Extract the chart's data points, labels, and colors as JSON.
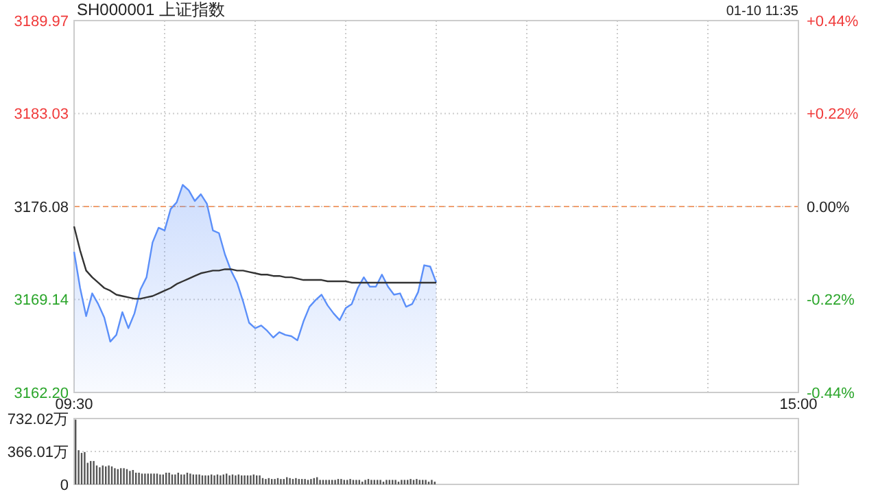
{
  "chart_data": [
    {
      "type": "line",
      "title": "SH000001 上证指数",
      "annotations": [
        "01-10 11:35"
      ],
      "categories": [
        "09:30",
        null,
        null,
        null,
        null,
        null,
        null,
        null,
        null,
        null,
        null,
        null,
        null,
        null,
        null,
        null,
        null,
        null,
        null,
        null,
        null,
        null,
        null,
        null,
        null,
        null,
        null,
        null,
        null,
        null,
        null,
        null,
        null,
        null,
        null,
        null,
        null,
        null,
        null,
        null,
        null,
        null,
        null,
        null,
        null,
        null,
        null,
        null,
        null,
        null,
        null,
        null,
        null,
        null,
        null,
        null,
        null,
        null,
        null,
        null,
        null,
        null,
        null,
        null,
        null,
        null,
        null,
        null,
        null,
        null,
        null,
        null,
        null,
        null,
        null,
        null,
        null,
        null,
        null,
        null,
        null,
        null,
        null,
        null,
        null,
        null,
        null,
        null,
        null,
        null,
        null,
        null,
        null,
        null,
        null,
        null,
        null,
        null,
        null,
        null,
        null,
        null,
        null,
        null,
        null,
        null,
        null,
        null,
        null,
        null,
        null,
        null,
        null,
        null,
        null,
        null,
        null,
        null,
        null,
        null,
        "15:00"
      ],
      "ylim": [
        3162.2,
        3189.97
      ],
      "yticks": [
        {
          "value": 3162.2,
          "label": "3162.20"
        },
        {
          "value": 3169.14,
          "label": "3169.14"
        },
        {
          "value": 3176.08,
          "label": "3176.08"
        },
        {
          "value": 3183.03,
          "label": "3183.03"
        },
        {
          "value": 3189.97,
          "label": "3189.97"
        }
      ],
      "y2lim": [
        -0.44,
        0.44
      ],
      "y2ticks": [
        {
          "value": -0.44,
          "label": "-0.44%"
        },
        {
          "value": -0.22,
          "label": "-0.22%"
        },
        {
          "value": 0,
          "label": "0.00%"
        },
        {
          "value": 0.22,
          "label": "+0.22%"
        },
        {
          "value": 0.44,
          "label": "+0.44%"
        }
      ],
      "grid": true,
      "ref_lines": [
        {
          "axis": "y",
          "value": 3176.08,
          "color": "#f0a070",
          "line_style": "dashed"
        }
      ],
      "series": [
        {
          "type": "area",
          "color": "#5b8ff9",
          "values": [
            3172.7,
            3170,
            3167.9,
            3169.6,
            3168.8,
            3167.8,
            3166,
            3166.5,
            3168.2,
            3167,
            3168.1,
            3169.9,
            3170.8,
            3173.4,
            3174.5,
            3174.3,
            3175.9,
            3176.4,
            3177.7,
            3177.3,
            3176.5,
            3177,
            3176.3,
            3174.3,
            3174.1,
            3172.5,
            3171.3,
            3170.4,
            3169,
            3167.4,
            3167,
            3167.2,
            3166.8,
            3166.3,
            3166.7,
            3166.5,
            3166.4,
            3166.1,
            3167.5,
            3168.6,
            3169.1,
            3169.5,
            3168.7,
            3168.1,
            3167.6,
            3168.5,
            3168.8,
            3170,
            3170.8,
            3170.1,
            3170.1,
            3171,
            3170.1,
            3169.5,
            3169.6,
            3168.6,
            3168.8,
            3169.7,
            3171.7,
            3171.6,
            3170.4,
            null,
            null,
            null,
            null,
            null,
            null,
            null,
            null,
            null,
            null,
            null,
            null,
            null,
            null,
            null,
            null,
            null,
            null,
            null,
            null,
            null,
            null,
            null,
            null,
            null,
            null,
            null,
            null,
            null,
            null,
            null,
            null,
            null,
            null,
            null,
            null,
            null,
            null,
            null,
            null,
            null,
            null,
            null,
            null,
            null,
            null,
            null,
            null,
            null,
            null,
            null,
            null,
            null,
            null,
            null,
            null,
            null,
            null,
            null,
            null
          ]
        },
        {
          "type": "line",
          "color": "#333333",
          "values": [
            3174.6,
            3172.8,
            3171.3,
            3170.8,
            3170.4,
            3170,
            3169.8,
            3169.5,
            3169.4,
            3169.3,
            3169.2,
            3169.2,
            3169.3,
            3169.4,
            3169.6,
            3169.8,
            3170,
            3170.3,
            3170.5,
            3170.7,
            3170.9,
            3171.1,
            3171.2,
            3171.3,
            3171.3,
            3171.4,
            3171.4,
            3171.3,
            3171.3,
            3171.2,
            3171.1,
            3171,
            3171,
            3170.9,
            3170.9,
            3170.8,
            3170.8,
            3170.7,
            3170.6,
            3170.6,
            3170.6,
            3170.6,
            3170.5,
            3170.5,
            3170.5,
            3170.5,
            3170.4,
            3170.4,
            3170.4,
            3170.4,
            3170.4,
            3170.4,
            3170.4,
            3170.4,
            3170.4,
            3170.4,
            3170.4,
            3170.4,
            3170.4,
            3170.4,
            3170.4,
            null,
            null,
            null,
            null,
            null,
            null,
            null,
            null,
            null,
            null,
            null,
            null,
            null,
            null,
            null,
            null,
            null,
            null,
            null,
            null,
            null,
            null,
            null,
            null,
            null,
            null,
            null,
            null,
            null,
            null,
            null,
            null,
            null,
            null,
            null,
            null,
            null,
            null,
            null,
            null,
            null,
            null,
            null,
            null,
            null,
            null,
            null,
            null,
            null,
            null,
            null,
            null,
            null,
            null,
            null,
            null,
            null,
            null,
            null,
            null
          ]
        }
      ],
      "marker": "none",
      "line_style": "solid"
    },
    {
      "type": "bar",
      "ylim": [
        0,
        732.02
      ],
      "yticks": [
        {
          "value": 0,
          "label": "0"
        },
        {
          "value": 366.01,
          "label": "366.01万"
        },
        {
          "value": 732.02,
          "label": "732.02万"
        }
      ],
      "grid": "y",
      "tick_labels": "y",
      "color": "#555555",
      "categories": [
        null,
        null,
        null,
        null,
        null,
        null,
        null,
        null,
        null,
        null,
        null,
        null,
        null,
        null,
        null,
        null,
        null,
        null,
        null,
        null,
        null,
        null,
        null,
        null,
        null,
        null,
        null,
        null,
        null,
        null,
        null,
        null,
        null,
        null,
        null,
        null,
        null,
        null,
        null,
        null,
        null,
        null,
        null,
        null,
        null,
        null,
        null,
        null,
        null,
        null,
        null,
        null,
        null,
        null,
        null,
        null,
        null,
        null,
        null,
        null,
        null,
        null,
        null,
        null,
        null,
        null,
        null,
        null,
        null,
        null,
        null,
        null,
        null,
        null,
        null,
        null,
        null,
        null,
        null,
        null,
        null,
        null,
        null,
        null,
        null,
        null,
        null,
        null,
        null,
        null,
        null,
        null,
        null,
        null,
        null,
        null,
        null,
        null,
        null,
        null,
        null,
        null,
        null,
        null,
        null,
        null,
        null,
        null,
        null,
        null,
        null,
        null,
        null,
        null,
        null,
        null,
        null,
        null,
        null,
        null,
        null,
        null,
        null,
        null,
        null,
        null,
        null,
        null,
        null,
        null,
        null,
        null,
        null,
        null,
        null,
        null,
        null,
        null,
        null,
        null,
        null,
        null,
        null,
        null,
        null,
        null,
        null,
        null,
        null,
        null,
        null,
        null,
        null,
        null,
        null,
        null,
        null,
        null,
        null,
        null,
        null,
        null,
        null,
        null,
        null,
        null,
        null,
        null,
        null,
        null,
        null,
        null,
        null,
        null,
        null,
        null,
        null,
        null,
        null,
        null,
        null,
        null,
        null,
        null,
        null,
        null,
        null,
        null,
        null,
        null,
        null,
        null,
        null,
        null,
        null,
        null,
        null,
        null,
        null,
        null,
        null,
        null,
        null,
        null,
        null,
        null,
        null,
        null,
        null,
        null,
        null,
        null,
        null,
        null,
        null,
        null,
        null,
        null,
        null,
        null,
        null,
        null,
        null,
        null,
        null,
        null,
        null,
        null,
        null,
        null,
        null,
        null,
        null,
        null,
        null,
        null,
        null,
        null,
        null,
        null
      ],
      "values": [
        720,
        380,
        350,
        360,
        240,
        260,
        260,
        210,
        190,
        210,
        200,
        210,
        200,
        180,
        170,
        180,
        180,
        170,
        150,
        160,
        130,
        130,
        120,
        120,
        120,
        120,
        120,
        120,
        110,
        110,
        130,
        130,
        110,
        110,
        130,
        110,
        110,
        130,
        120,
        110,
        110,
        110,
        100,
        100,
        100,
        110,
        100,
        110,
        100,
        110,
        120,
        100,
        110,
        100,
        110,
        100,
        100,
        100,
        100,
        110,
        100,
        100,
        70,
        60,
        70,
        60,
        60,
        70,
        60,
        60,
        80,
        70,
        60,
        70,
        60,
        60,
        60,
        50,
        60,
        70,
        80,
        50,
        50,
        50,
        50,
        50,
        50,
        60,
        60,
        50,
        50,
        60,
        50,
        50,
        50,
        30,
        50,
        60,
        50,
        50,
        50,
        50,
        30,
        50,
        50,
        50,
        50,
        30,
        50,
        50,
        50,
        60,
        50,
        60,
        50,
        50,
        50,
        30,
        50,
        30,
        null,
        null,
        null,
        null,
        null,
        null,
        null,
        null,
        null,
        null,
        null,
        null,
        null,
        null,
        null,
        null,
        null,
        null,
        null,
        null,
        null,
        null,
        null,
        null,
        null,
        null,
        null,
        null,
        null,
        null,
        null,
        null,
        null,
        null,
        null,
        null,
        null,
        null,
        null,
        null,
        null,
        null,
        null,
        null,
        null,
        null,
        null,
        null,
        null,
        null,
        null,
        null,
        null,
        null,
        null,
        null,
        null,
        null,
        null,
        null,
        null,
        null,
        null,
        null,
        null,
        null,
        null,
        null,
        null,
        null,
        null,
        null,
        null,
        null,
        null,
        null,
        null,
        null,
        null,
        null,
        null,
        null,
        null,
        null,
        null,
        null,
        null,
        null,
        null,
        null,
        null,
        null,
        null,
        null,
        null,
        null,
        null,
        null,
        null,
        null,
        null,
        null,
        null,
        null,
        null,
        null,
        null,
        null,
        null,
        null,
        null,
        null,
        null,
        null,
        null,
        null,
        null,
        null,
        null,
        null
      ]
    }
  ]
}
